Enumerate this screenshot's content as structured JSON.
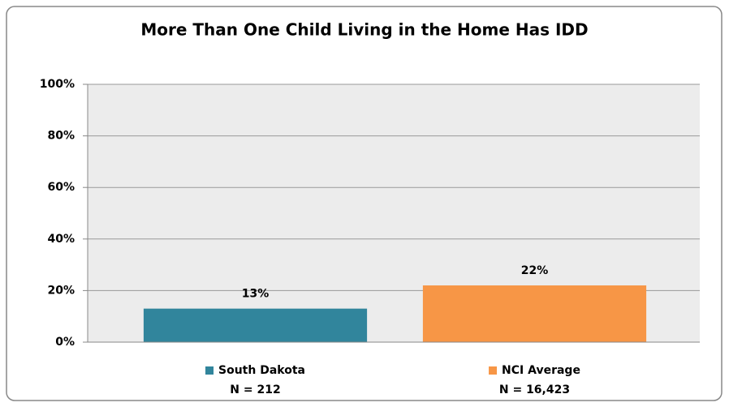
{
  "chart_data": {
    "type": "bar",
    "title": "More Than One Child Living in the Home Has IDD",
    "categories": [
      "South Dakota",
      "NCI Average"
    ],
    "n_labels": [
      "N = 212",
      "N = 16,423"
    ],
    "values": [
      13,
      22
    ],
    "value_labels": [
      "13%",
      "22%"
    ],
    "colors": [
      "#31859c",
      "#f79646"
    ],
    "ylim": [
      0,
      100
    ],
    "yticks": [
      {
        "value": 0,
        "label": "0%"
      },
      {
        "value": 20,
        "label": "20%"
      },
      {
        "value": 40,
        "label": "40%"
      },
      {
        "value": 60,
        "label": "60%"
      },
      {
        "value": 80,
        "label": "80%"
      },
      {
        "value": 100,
        "label": "100%"
      }
    ],
    "grid": true
  }
}
